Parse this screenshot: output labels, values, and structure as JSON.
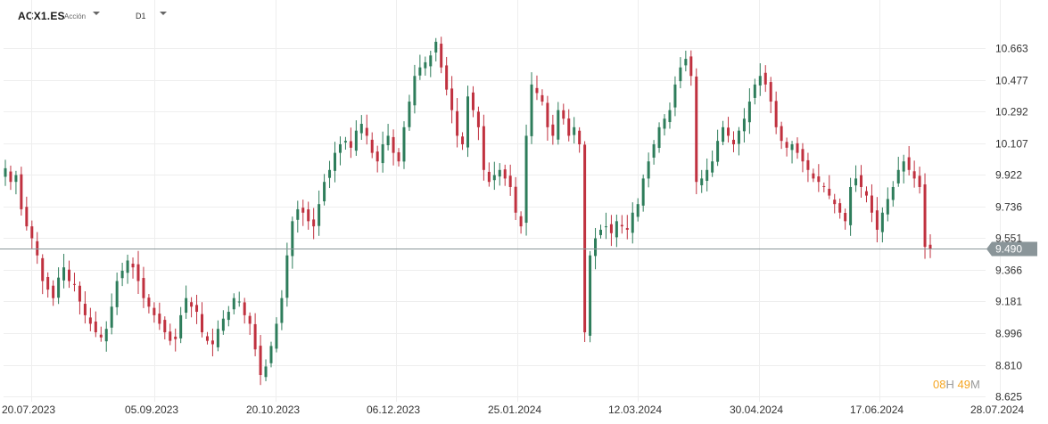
{
  "toolbar": {
    "symbol": "ACX1.ES",
    "instrument_type": "Acción",
    "timeframe": "D1"
  },
  "countdown": {
    "hours": "08",
    "hours_unit": "H",
    "minutes": "49",
    "minutes_unit": "M"
  },
  "colors": {
    "bull": "#2e7d5b",
    "bear": "#c0313f",
    "grid": "#eeeeee",
    "current_line": "#8a9599",
    "current_label": "#8a9599"
  },
  "chart_data": {
    "type": "candlestick",
    "title": "",
    "y_ticks": [
      10.663,
      10.477,
      10.292,
      10.107,
      9.922,
      9.736,
      9.551,
      9.366,
      9.181,
      8.996,
      8.81,
      8.625
    ],
    "y_tick_labels": [
      "10.663",
      "10.477",
      "10.292",
      "10.107",
      "9.922",
      "9.736",
      "9.551",
      "9.366",
      "9.181",
      "8.996",
      "8.810",
      "8.625"
    ],
    "ylim": [
      8.625,
      10.663
    ],
    "x_tick_labels": [
      "20.07.2023",
      "05.09.2023",
      "20.10.2023",
      "06.12.2023",
      "25.01.2024",
      "12.03.2024",
      "30.04.2024",
      "17.06.2024",
      "28.07.2024"
    ],
    "current_price": 9.49,
    "current_price_label": "9.490",
    "grid": true,
    "close_series": [
      9.96,
      9.88,
      9.92,
      9.72,
      9.62,
      9.55,
      9.45,
      9.3,
      9.25,
      9.2,
      9.32,
      9.38,
      9.3,
      9.28,
      9.18,
      9.1,
      9.05,
      9.0,
      8.97,
      9.02,
      9.15,
      9.3,
      9.36,
      9.42,
      9.38,
      9.3,
      9.2,
      9.15,
      9.1,
      9.05,
      9.0,
      8.95,
      8.96,
      9.1,
      9.2,
      9.15,
      9.12,
      9.0,
      8.95,
      8.93,
      9.02,
      9.08,
      9.12,
      9.2,
      9.18,
      9.1,
      9.05,
      8.9,
      8.75,
      8.8,
      8.92,
      9.05,
      9.2,
      9.45,
      9.65,
      9.72,
      9.7,
      9.65,
      9.62,
      9.75,
      9.88,
      9.95,
      10.05,
      10.1,
      10.12,
      10.08,
      10.18,
      10.22,
      10.15,
      10.05,
      10.0,
      10.1,
      10.15,
      10.05,
      10.0,
      10.2,
      10.35,
      10.5,
      10.55,
      10.58,
      10.62,
      10.7,
      10.55,
      10.42,
      10.3,
      10.15,
      10.1,
      10.38,
      10.3,
      10.2,
      9.95,
      9.88,
      9.92,
      9.95,
      9.9,
      9.85,
      9.7,
      9.62,
      10.15,
      10.45,
      10.4,
      10.35,
      10.2,
      10.15,
      10.3,
      10.25,
      10.15,
      10.2,
      10.1,
      9.0,
      9.45,
      9.55,
      9.6,
      9.62,
      9.58,
      9.65,
      9.62,
      9.6,
      9.7,
      9.75,
      9.9,
      10.0,
      10.1,
      10.2,
      10.25,
      10.3,
      10.45,
      10.55,
      10.6,
      10.5,
      9.88,
      9.9,
      9.95,
      10.0,
      10.12,
      10.2,
      10.15,
      10.1,
      10.18,
      10.25,
      10.35,
      10.45,
      10.5,
      10.45,
      10.35,
      10.2,
      10.12,
      10.08,
      10.1,
      10.05,
      10.0,
      9.95,
      9.9,
      9.88,
      9.85,
      9.8,
      9.75,
      9.7,
      9.65,
      9.85,
      9.9,
      9.85,
      9.8,
      9.7,
      9.6,
      9.7,
      9.78,
      9.85,
      9.95,
      10.0,
      9.95,
      9.9,
      9.85,
      9.5,
      9.49
    ]
  }
}
